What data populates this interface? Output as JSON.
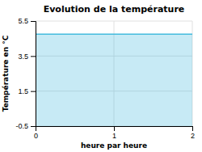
{
  "chart_data": {
    "type": "area",
    "title": "Evolution de la température",
    "x_label": "heure par heure",
    "y_label": "Température en °C",
    "x": [
      0,
      2
    ],
    "values": [
      4.75,
      4.75
    ],
    "color": "#44bbdd",
    "xlim": [
      0,
      2
    ],
    "ylim": [
      -0.5,
      5.5
    ],
    "xticks": [
      0,
      1,
      2
    ],
    "yticks": [
      -0.5,
      1.5,
      3.5,
      5.5
    ],
    "grid": true
  }
}
